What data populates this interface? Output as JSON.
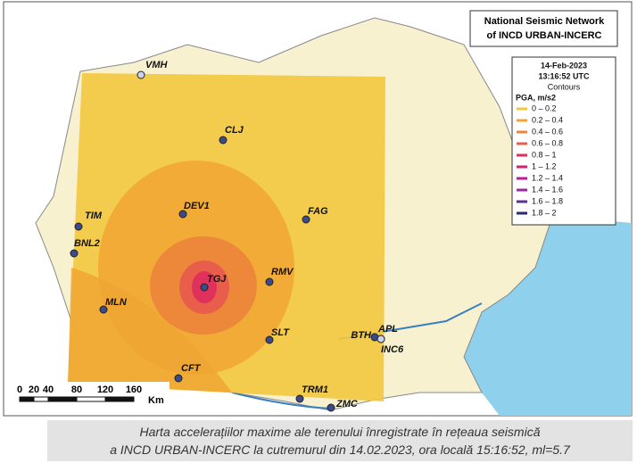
{
  "header": {
    "title": [
      "National Seismic Network",
      "of INCD URBAN-INCERC"
    ]
  },
  "legend": {
    "date": "14-Feb-2023",
    "time": "13:16:52 UTC",
    "heading": "Contours",
    "unit": "PGA, m/s2",
    "items": [
      {
        "label": "0 – 0.2",
        "color": "#f3c83e"
      },
      {
        "label": "0.2 – 0.4",
        "color": "#f0a432"
      },
      {
        "label": "0.4 – 0.6",
        "color": "#ec843c"
      },
      {
        "label": "0.6 – 0.8",
        "color": "#e85e4a"
      },
      {
        "label": "0.8 – 1",
        "color": "#e0305c"
      },
      {
        "label": "1 – 1.2",
        "color": "#d42070"
      },
      {
        "label": "1.2 – 1.4",
        "color": "#c21a92"
      },
      {
        "label": "1.4 – 1.6",
        "color": "#9a2aa2"
      },
      {
        "label": "1.6 – 1.8",
        "color": "#5a3292"
      },
      {
        "label": "1.8 – 2",
        "color": "#2a2a72"
      }
    ]
  },
  "stations": [
    {
      "label": "VMH"
    },
    {
      "label": "CLJ"
    },
    {
      "label": "DEV1"
    },
    {
      "label": "TIM"
    },
    {
      "label": "BNL2"
    },
    {
      "label": "FAG"
    },
    {
      "label": "TGJ"
    },
    {
      "label": "RMV"
    },
    {
      "label": "MLN"
    },
    {
      "label": "SLT"
    },
    {
      "label": "BTH"
    },
    {
      "label": "APL"
    },
    {
      "label": "INC6"
    },
    {
      "label": "CFT"
    },
    {
      "label": "TRM1"
    },
    {
      "label": "ZMC"
    }
  ],
  "scale": {
    "ticks": [
      "0",
      "20",
      "40",
      "80",
      "120",
      "160"
    ],
    "unit": "Km"
  },
  "caption": [
    "Harta accelerațiilor maxime ale terenului înregistrate în rețeaua seismică",
    "a INCD URBAN-INCERC la cutremurul din 14.02.2023, ora locală 15:16:52, ml=5.7"
  ]
}
